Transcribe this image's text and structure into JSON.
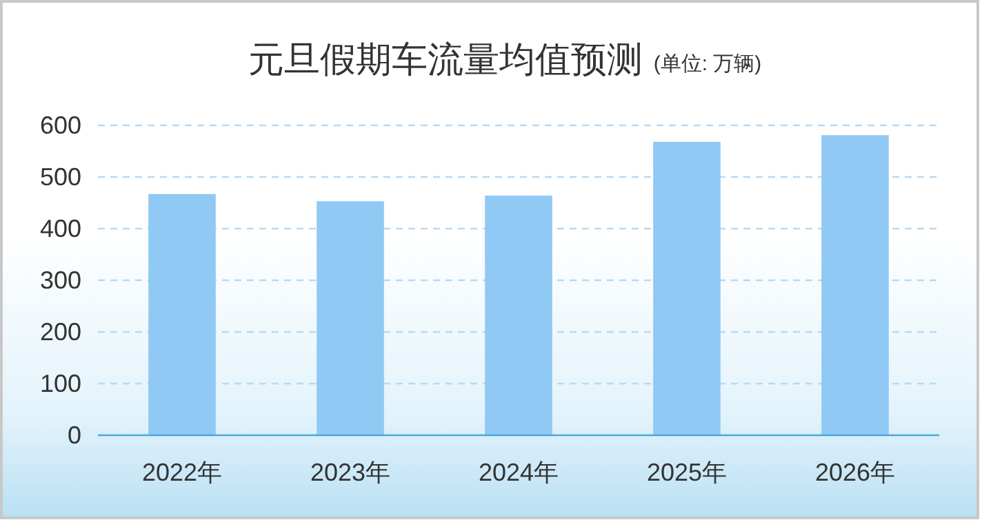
{
  "chart_data": {
    "type": "bar",
    "title": "元旦假期车流量均值预测",
    "subtitle": "(单位: 万辆)",
    "categories": [
      "2022年",
      "2023年",
      "2024年",
      "2025年",
      "2026年"
    ],
    "values": [
      467,
      453,
      464,
      568,
      581
    ],
    "color": "#8fc9f4",
    "ylim": [
      0,
      600
    ],
    "yticks": [
      0,
      100,
      200,
      300,
      400,
      500,
      600
    ],
    "grid": "y"
  }
}
